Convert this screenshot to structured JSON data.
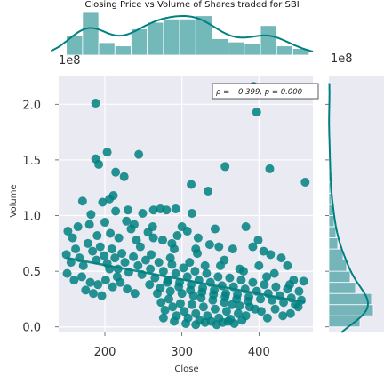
{
  "chart_data": {
    "type": "scatter",
    "title": "Closing Price vs Volume of Shares traded for SBI",
    "xlabel": "Close",
    "ylabel": "Volume",
    "xlim": [
      140,
      470
    ],
    "ylim": [
      -0.05,
      2.25
    ],
    "x_ticks": [
      200,
      300,
      400
    ],
    "y_ticks": [
      0.0,
      0.5,
      1.0,
      1.5,
      2.0
    ],
    "y_tick_labels": [
      "0.0",
      "0.5",
      "1.0",
      "1.5",
      "2.0"
    ],
    "x_tick_labels": [
      "200",
      "300",
      "400"
    ],
    "y_offset_text": "1e8",
    "annotation": "ρ = −0.399, p = 0.000",
    "grid": true,
    "regression": {
      "x0": 150,
      "y0": 0.62,
      "x1": 460,
      "y1": 0.22
    },
    "marginal_x_hist": {
      "bin_edges": [
        150,
        171,
        192,
        213,
        234,
        255,
        276,
        297,
        318,
        339,
        360,
        381,
        402,
        423,
        444,
        465
      ],
      "counts": [
        29,
        65,
        19,
        14,
        40,
        50,
        55,
        55,
        60,
        25,
        20,
        18,
        45,
        14,
        10
      ]
    },
    "marginal_y_hist": {
      "bin_edges": [
        0.0,
        0.1,
        0.2,
        0.3,
        0.4,
        0.5,
        0.6,
        0.7,
        0.8,
        0.9,
        1.0,
        1.1,
        1.2,
        1.3,
        1.4,
        1.5,
        1.6,
        1.7,
        1.8,
        1.9,
        2.0,
        2.1,
        2.2
      ],
      "counts": [
        35,
        50,
        48,
        30,
        24,
        20,
        16,
        10,
        8,
        6,
        5,
        3,
        2,
        2,
        1,
        1,
        1,
        0,
        0,
        0,
        1,
        1
      ]
    },
    "points": [
      [
        188,
        2.01
      ],
      [
        393,
        2.16
      ],
      [
        397,
        1.93
      ],
      [
        188,
        1.51
      ],
      [
        192,
        1.46
      ],
      [
        203,
        1.57
      ],
      [
        244,
        1.55
      ],
      [
        225,
        1.35
      ],
      [
        214,
        1.39
      ],
      [
        356,
        1.44
      ],
      [
        414,
        1.42
      ],
      [
        460,
        1.3
      ],
      [
        312,
        1.28
      ],
      [
        334,
        1.22
      ],
      [
        197,
        1.12
      ],
      [
        206,
        1.15
      ],
      [
        211,
        1.18
      ],
      [
        230,
        1.05
      ],
      [
        263,
        1.05
      ],
      [
        280,
        1.05
      ],
      [
        292,
        1.06
      ],
      [
        313,
        1.02
      ],
      [
        171,
        1.13
      ],
      [
        182,
        1.01
      ],
      [
        214,
        1.04
      ],
      [
        249,
        1.02
      ],
      [
        272,
        1.06
      ],
      [
        307,
        0.86
      ],
      [
        343,
        0.88
      ],
      [
        383,
        0.9
      ],
      [
        399,
        0.78
      ],
      [
        152,
        0.86
      ],
      [
        158,
        0.8
      ],
      [
        165,
        0.9
      ],
      [
        180,
        0.92
      ],
      [
        190,
        0.82
      ],
      [
        200,
        0.94
      ],
      [
        207,
        0.84
      ],
      [
        218,
        0.8
      ],
      [
        228,
        0.95
      ],
      [
        234,
        0.88
      ],
      [
        241,
        0.78
      ],
      [
        256,
        0.85
      ],
      [
        263,
        0.8
      ],
      [
        275,
        0.78
      ],
      [
        287,
        0.75
      ],
      [
        294,
        0.82
      ],
      [
        321,
        0.8
      ],
      [
        336,
        0.74
      ],
      [
        348,
        0.72
      ],
      [
        366,
        0.7
      ],
      [
        392,
        0.72
      ],
      [
        406,
        0.68
      ],
      [
        415,
        0.65
      ],
      [
        429,
        0.62
      ],
      [
        437,
        0.55
      ],
      [
        150,
        0.65
      ],
      [
        156,
        0.58
      ],
      [
        162,
        0.7
      ],
      [
        167,
        0.62
      ],
      [
        172,
        0.55
      ],
      [
        178,
        0.75
      ],
      [
        184,
        0.68
      ],
      [
        189,
        0.6
      ],
      [
        194,
        0.72
      ],
      [
        199,
        0.64
      ],
      [
        203,
        0.57
      ],
      [
        209,
        0.7
      ],
      [
        213,
        0.62
      ],
      [
        217,
        0.52
      ],
      [
        222,
        0.66
      ],
      [
        226,
        0.58
      ],
      [
        231,
        0.49
      ],
      [
        237,
        0.63
      ],
      [
        243,
        0.55
      ],
      [
        248,
        0.47
      ],
      [
        253,
        0.6
      ],
      [
        259,
        0.52
      ],
      [
        265,
        0.44
      ],
      [
        270,
        0.58
      ],
      [
        276,
        0.5
      ],
      [
        282,
        0.42
      ],
      [
        287,
        0.56
      ],
      [
        292,
        0.48
      ],
      [
        297,
        0.4
      ],
      [
        302,
        0.53
      ],
      [
        307,
        0.45
      ],
      [
        312,
        0.38
      ],
      [
        317,
        0.5
      ],
      [
        322,
        0.42
      ],
      [
        327,
        0.35
      ],
      [
        332,
        0.48
      ],
      [
        337,
        0.4
      ],
      [
        342,
        0.33
      ],
      [
        347,
        0.45
      ],
      [
        352,
        0.37
      ],
      [
        357,
        0.3
      ],
      [
        362,
        0.44
      ],
      [
        367,
        0.36
      ],
      [
        372,
        0.29
      ],
      [
        377,
        0.42
      ],
      [
        382,
        0.34
      ],
      [
        387,
        0.27
      ],
      [
        392,
        0.4
      ],
      [
        397,
        0.32
      ],
      [
        402,
        0.25
      ],
      [
        407,
        0.38
      ],
      [
        412,
        0.3
      ],
      [
        417,
        0.24
      ],
      [
        422,
        0.36
      ],
      [
        427,
        0.28
      ],
      [
        432,
        0.22
      ],
      [
        437,
        0.34
      ],
      [
        442,
        0.26
      ],
      [
        447,
        0.2
      ],
      [
        452,
        0.32
      ],
      [
        458,
        0.41
      ],
      [
        151,
        0.48
      ],
      [
        160,
        0.42
      ],
      [
        170,
        0.45
      ],
      [
        181,
        0.4
      ],
      [
        191,
        0.38
      ],
      [
        201,
        0.42
      ],
      [
        210,
        0.36
      ],
      [
        220,
        0.4
      ],
      [
        229,
        0.34
      ],
      [
        239,
        0.3
      ],
      [
        268,
        0.3
      ],
      [
        273,
        0.22
      ],
      [
        278,
        0.15
      ],
      [
        283,
        0.25
      ],
      [
        288,
        0.18
      ],
      [
        293,
        0.1
      ],
      [
        298,
        0.21
      ],
      [
        303,
        0.14
      ],
      [
        308,
        0.08
      ],
      [
        313,
        0.2
      ],
      [
        318,
        0.12
      ],
      [
        323,
        0.06
      ],
      [
        328,
        0.18
      ],
      [
        333,
        0.1
      ],
      [
        338,
        0.05
      ],
      [
        343,
        0.16
      ],
      [
        348,
        0.08
      ],
      [
        353,
        0.04
      ],
      [
        358,
        0.14
      ],
      [
        363,
        0.07
      ],
      [
        368,
        0.03
      ],
      [
        373,
        0.12
      ],
      [
        378,
        0.06
      ],
      [
        383,
        0.1
      ],
      [
        403,
        0.14
      ],
      [
        411,
        0.08
      ],
      [
        421,
        0.16
      ],
      [
        431,
        0.1
      ],
      [
        441,
        0.12
      ],
      [
        451,
        0.18
      ],
      [
        455,
        0.24
      ],
      [
        272,
        0.35
      ],
      [
        285,
        0.32
      ],
      [
        300,
        0.3
      ],
      [
        315,
        0.28
      ],
      [
        325,
        0.26
      ],
      [
        340,
        0.24
      ],
      [
        355,
        0.22
      ],
      [
        365,
        0.2
      ],
      [
        375,
        0.19
      ],
      [
        388,
        0.18
      ],
      [
        395,
        0.16
      ],
      [
        276,
        0.08
      ],
      [
        290,
        0.05
      ],
      [
        305,
        0.03
      ],
      [
        318,
        0.02
      ],
      [
        330,
        0.04
      ],
      [
        345,
        0.02
      ],
      [
        360,
        0.05
      ],
      [
        281,
        0.4
      ],
      [
        296,
        0.36
      ],
      [
        311,
        0.33
      ],
      [
        326,
        0.31
      ],
      [
        341,
        0.29
      ],
      [
        356,
        0.27
      ],
      [
        371,
        0.25
      ],
      [
        386,
        0.23
      ],
      [
        260,
        0.65
      ],
      [
        285,
        0.62
      ],
      [
        310,
        0.58
      ],
      [
        330,
        0.55
      ],
      [
        355,
        0.6
      ],
      [
        375,
        0.52
      ],
      [
        400,
        0.55
      ],
      [
        420,
        0.48
      ],
      [
        445,
        0.42
      ],
      [
        175,
        0.33
      ],
      [
        185,
        0.3
      ],
      [
        196,
        0.28
      ],
      [
        206,
        0.52
      ],
      [
        216,
        0.45
      ],
      [
        246,
        0.72
      ],
      [
        258,
        0.38
      ],
      [
        290,
        0.7
      ],
      [
        320,
        0.66
      ],
      [
        350,
        0.55
      ],
      [
        380,
        0.5
      ],
      [
        410,
        0.45
      ],
      [
        440,
        0.38
      ],
      [
        300,
        0.9
      ],
      [
        318,
        0.7
      ],
      [
        262,
        0.9
      ],
      [
        238,
        0.92
      ]
    ]
  }
}
